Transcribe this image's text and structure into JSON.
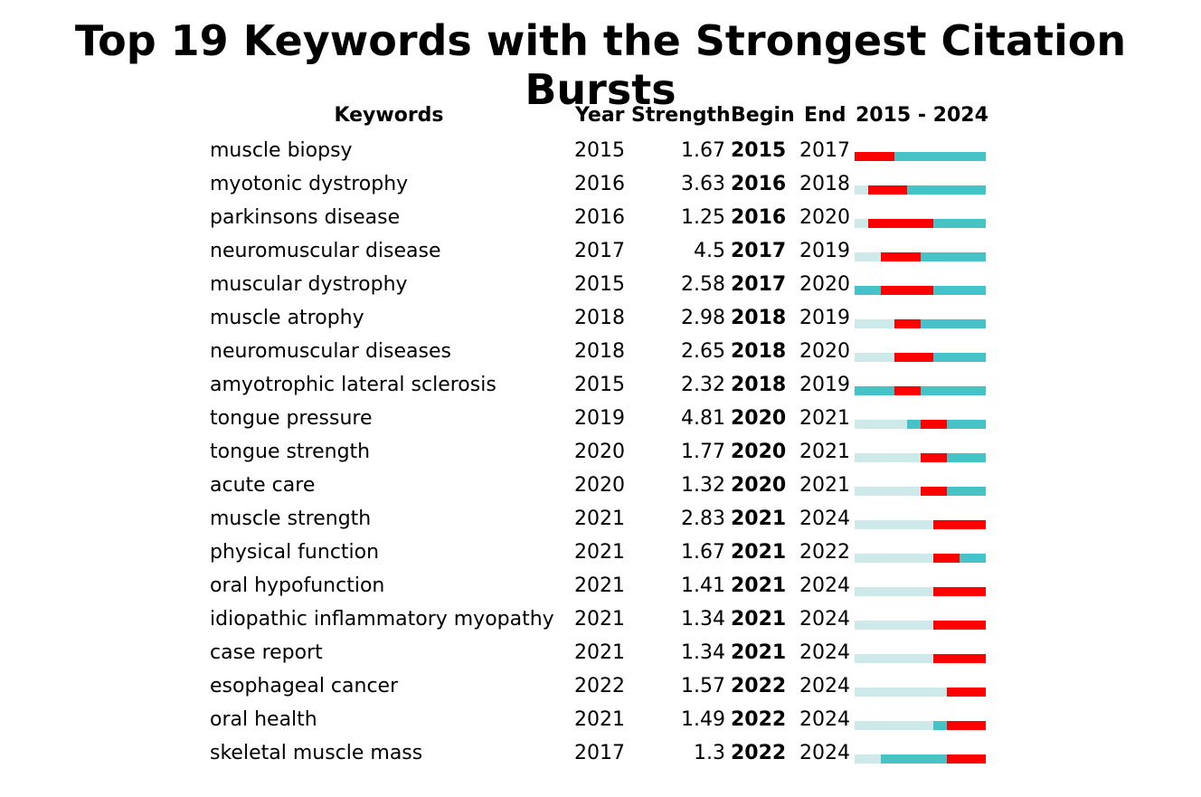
{
  "title": "Top 19 Keywords with the Strongest Citation Bursts",
  "headers": {
    "keywords": "Keywords",
    "year": "Year",
    "strength": "Strength",
    "begin": "Begin",
    "end": "End",
    "range": "2015 - 2024"
  },
  "colors": {
    "burst": "#ff0000",
    "active": "#45c3c6",
    "before": "#cde9ea"
  },
  "chart_data": {
    "type": "table",
    "timeline": [
      2015,
      2024
    ],
    "rows": [
      {
        "keyword": "muscle biopsy",
        "year": "2015",
        "strength": "1.67",
        "begin": "2015",
        "end": "2017"
      },
      {
        "keyword": "myotonic dystrophy",
        "year": "2016",
        "strength": "3.63",
        "begin": "2016",
        "end": "2018"
      },
      {
        "keyword": "parkinsons disease",
        "year": "2016",
        "strength": "1.25",
        "begin": "2016",
        "end": "2020"
      },
      {
        "keyword": "neuromuscular disease",
        "year": "2017",
        "strength": "4.5",
        "begin": "2017",
        "end": "2019"
      },
      {
        "keyword": "muscular dystrophy",
        "year": "2015",
        "strength": "2.58",
        "begin": "2017",
        "end": "2020"
      },
      {
        "keyword": "muscle atrophy",
        "year": "2018",
        "strength": "2.98",
        "begin": "2018",
        "end": "2019"
      },
      {
        "keyword": "neuromuscular diseases",
        "year": "2018",
        "strength": "2.65",
        "begin": "2018",
        "end": "2020"
      },
      {
        "keyword": "amyotrophic lateral sclerosis",
        "year": "2015",
        "strength": "2.32",
        "begin": "2018",
        "end": "2019"
      },
      {
        "keyword": "tongue pressure",
        "year": "2019",
        "strength": "4.81",
        "begin": "2020",
        "end": "2021"
      },
      {
        "keyword": "tongue strength",
        "year": "2020",
        "strength": "1.77",
        "begin": "2020",
        "end": "2021"
      },
      {
        "keyword": "acute care",
        "year": "2020",
        "strength": "1.32",
        "begin": "2020",
        "end": "2021"
      },
      {
        "keyword": "muscle strength",
        "year": "2021",
        "strength": "2.83",
        "begin": "2021",
        "end": "2024"
      },
      {
        "keyword": "physical function",
        "year": "2021",
        "strength": "1.67",
        "begin": "2021",
        "end": "2022"
      },
      {
        "keyword": "oral hypofunction",
        "year": "2021",
        "strength": "1.41",
        "begin": "2021",
        "end": "2024"
      },
      {
        "keyword": "idiopathic inflammatory myopathy",
        "year": "2021",
        "strength": "1.34",
        "begin": "2021",
        "end": "2024"
      },
      {
        "keyword": "case report",
        "year": "2021",
        "strength": "1.34",
        "begin": "2021",
        "end": "2024"
      },
      {
        "keyword": "esophageal cancer",
        "year": "2022",
        "strength": "1.57",
        "begin": "2022",
        "end": "2024"
      },
      {
        "keyword": "oral health",
        "year": "2021",
        "strength": "1.49",
        "begin": "2022",
        "end": "2024"
      },
      {
        "keyword": "skeletal muscle mass",
        "year": "2017",
        "strength": "1.3",
        "begin": "2022",
        "end": "2024"
      }
    ]
  }
}
